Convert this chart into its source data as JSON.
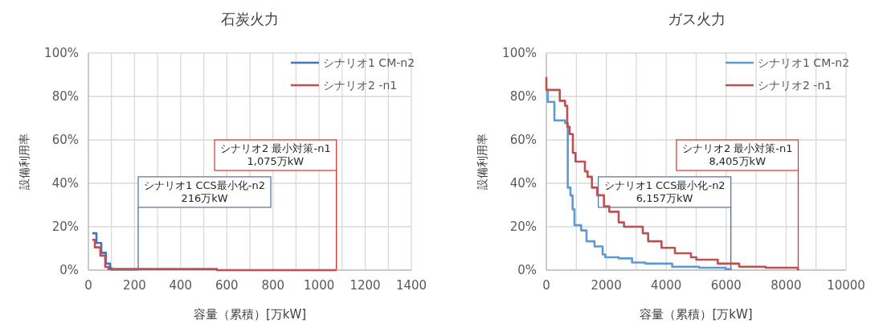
{
  "chart_data": [
    {
      "type": "step",
      "title": "石炭火力",
      "xlabel": "容量（累積）[万kW]",
      "ylabel": "設備利用率",
      "xlim": [
        0,
        1400
      ],
      "xticks": [
        0,
        {
          "value": 100,
          "label": null
        },
        200,
        {
          "value": 300,
          "label": null
        },
        400,
        {
          "value": 500,
          "label": null
        },
        600,
        {
          "value": 700,
          "label": null
        },
        800,
        {
          "value": 900,
          "label": null
        },
        1000,
        {
          "value": 1100,
          "label": null
        },
        1200,
        {
          "value": 1300,
          "label": null
        },
        1400
      ],
      "ylim": [
        0,
        100
      ],
      "yticks": [
        {
          "value": 0,
          "label": "0%"
        },
        {
          "value": 20,
          "label": "20%"
        },
        {
          "value": 40,
          "label": "40%"
        },
        {
          "value": 60,
          "label": "60%"
        },
        {
          "value": 80,
          "label": "80%"
        },
        {
          "value": 100,
          "label": "100%"
        }
      ],
      "grid": true,
      "legend": "top right",
      "series": [
        {
          "name": "シナリオ1 CM-n2",
          "color": "#4472c4",
          "x": [
            17,
            35,
            56,
            76,
            94,
            100,
            216
          ],
          "values": [
            17,
            12.5,
            8,
            3,
            1,
            0.3,
            0.3
          ]
        },
        {
          "name": "シナリオ2 -n1",
          "color": "#c0504d",
          "x": [
            17,
            28,
            52,
            73,
            87,
            557,
            1075
          ],
          "values": [
            14,
            10.5,
            6.7,
            1.5,
            0.5,
            0,
            0
          ]
        }
      ],
      "ref_lines": [
        {
          "axis": "x",
          "value": 216,
          "label": "シナリオ1 CCS最小化-n2\n216万kW",
          "color": "#4f6fa8"
        },
        {
          "axis": "x",
          "value": 1075,
          "label": "シナリオ2 最小対策-n1\n1,075万kW",
          "color": "#e03030"
        }
      ]
    },
    {
      "type": "step",
      "title": "ガス火力",
      "xlabel": "容量（累積）[万kW]",
      "ylabel": "設備利用率",
      "xlim": [
        0,
        10000
      ],
      "xticks": [
        0,
        {
          "value": 1000,
          "label": null
        },
        2000,
        {
          "value": 3000,
          "label": null
        },
        4000,
        {
          "value": 5000,
          "label": null
        },
        6000,
        {
          "value": 7000,
          "label": null
        },
        8000,
        {
          "value": 9000,
          "label": null
        },
        10000
      ],
      "ylim": [
        0,
        100
      ],
      "yticks": [
        {
          "value": 0,
          "label": "0%"
        },
        {
          "value": 20,
          "label": "20%"
        },
        {
          "value": 40,
          "label": "40%"
        },
        {
          "value": 60,
          "label": "60%"
        },
        {
          "value": 80,
          "label": "80%"
        },
        {
          "value": 100,
          "label": "100%"
        }
      ],
      "grid": true,
      "legend": "top right",
      "series": [
        {
          "name": "シナリオ1 CM-n2",
          "color": "#5b9bd5",
          "x": [
            0,
            45,
            268,
            626,
            715,
            804,
            876,
            938,
            1162,
            1340,
            1608,
            1877,
            1966,
            2413,
            2860,
            3306,
            4200,
            5094,
            5980,
            6157
          ],
          "values": [
            83,
            77.5,
            69,
            67.8,
            38,
            34.4,
            28,
            20.7,
            18.3,
            13.3,
            10.9,
            7.2,
            5.9,
            5.4,
            3.5,
            3,
            1.6,
            1.1,
            0.5,
            0
          ]
        },
        {
          "name": "シナリオ2 -n1",
          "color": "#c0504d",
          "x": [
            0,
            0,
            447,
            626,
            697,
            778,
            885,
            974,
            1287,
            1376,
            1519,
            1698,
            1921,
            2100,
            2413,
            2592,
            3217,
            3396,
            3843,
            4290,
            4826,
            5005,
            5720,
            6434,
            7319,
            8391,
            8405
          ],
          "values": [
            89,
            83,
            78,
            75.7,
            66,
            62.7,
            54,
            50,
            45.5,
            43,
            38,
            34.5,
            29.4,
            26.9,
            22,
            20,
            17,
            13.3,
            10.3,
            7.8,
            5.9,
            4.8,
            3,
            1.6,
            1.1,
            0.3,
            0
          ]
        }
      ],
      "ref_lines": [
        {
          "axis": "x",
          "value": 6157,
          "label": "シナリオ1 CCS最小化-n2\n6,157万kW",
          "color": "#4f6fa8"
        },
        {
          "axis": "x",
          "value": 8405,
          "label": "シナリオ2 最小対策-n1\n8,405万kW",
          "color": "#e03030"
        }
      ]
    }
  ]
}
